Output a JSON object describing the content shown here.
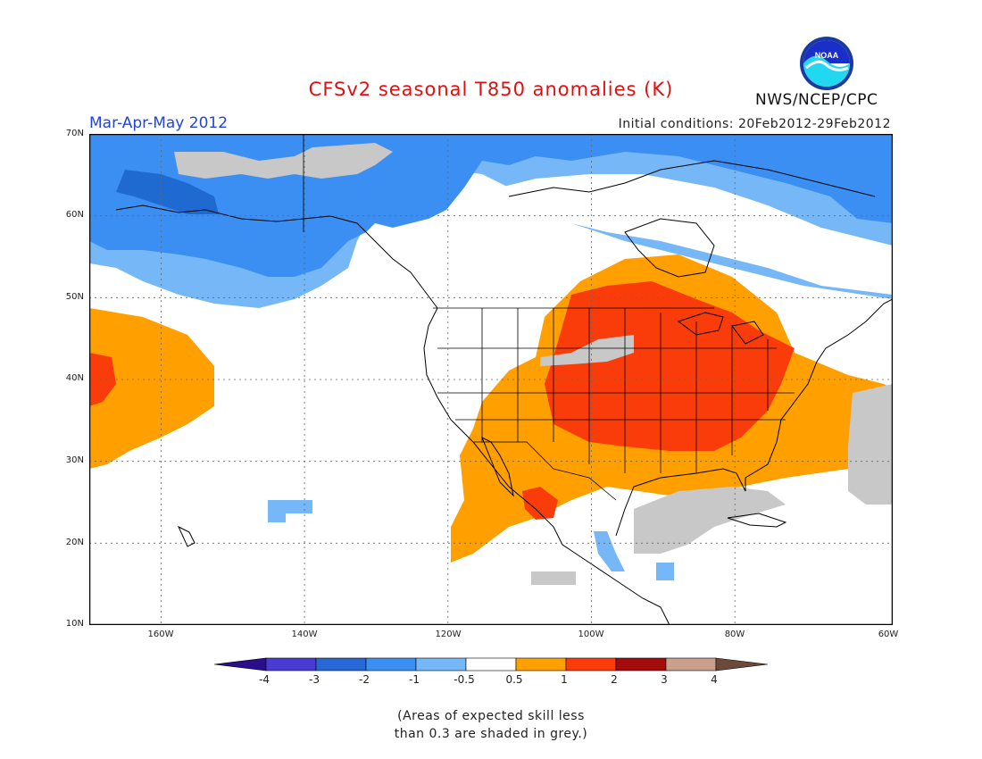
{
  "title": "CFSv2 seasonal T850 anomalies (K)",
  "period": "Mar-Apr-May 2012",
  "initial_conditions": "Initial conditions: 20Feb2012-29Feb2012",
  "agency": "NWS/NCEP/CPC",
  "logo_text": "NOAA",
  "note": [
    "(Areas of expected skill less",
    "than 0.3 are shaded in grey.)"
  ],
  "map": {
    "lon_range": [
      -172,
      -60
    ],
    "lat_range": [
      10,
      70
    ],
    "lat_labels": [
      "70N",
      "60N",
      "50N",
      "40N",
      "30N",
      "20N",
      "10N"
    ],
    "lon_labels": [
      "160W",
      "140W",
      "120W",
      "100W",
      "80W",
      "60W"
    ],
    "regions": [
      {
        "name": "high-latitude-light-blue",
        "category": "-1 to -0.5",
        "color": "#76b8f7"
      },
      {
        "name": "alaska-medium-blue",
        "category": "-2 to -1",
        "color": "#3c8ff2"
      },
      {
        "name": "bering-dark-blue",
        "category": "-3 to -2",
        "color": "#1e6ad0"
      },
      {
        "name": "central-us-orange",
        "category": "0.5 to 1",
        "color": "#ffa000"
      },
      {
        "name": "midwest-red",
        "category": "1 to 2",
        "color": "#fa3c0a"
      },
      {
        "name": "low-skill-grey",
        "category": "skill < 0.3",
        "color": "#c8c8c8"
      }
    ]
  },
  "colorbar": {
    "colors": [
      "#2a0e8e",
      "#4a3bd3",
      "#2768d6",
      "#3c8ff2",
      "#76b8f7",
      "#ffffff",
      "#ffa000",
      "#fa3c0a",
      "#a40c0c",
      "#c9a08c",
      "#6b4a3c"
    ],
    "labels": [
      "-4",
      "-3",
      "-2",
      "-1",
      "-0.5",
      "0.5",
      "1",
      "2",
      "3",
      "4"
    ]
  }
}
